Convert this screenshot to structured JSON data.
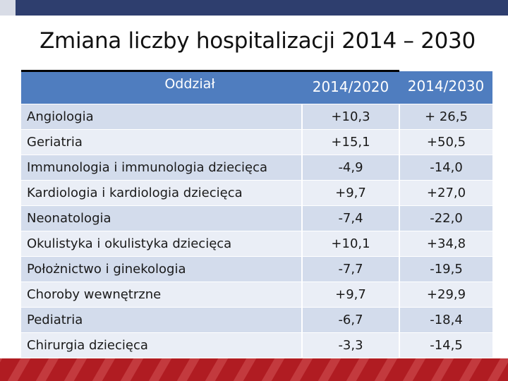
{
  "title": "Zmiana liczby hospitalizacji 2014 – 2030",
  "colors": {
    "header": "#4f7dbf",
    "row_dark": "#d3dcec",
    "row_light": "#eaeef6",
    "top_bar": "#2e3e6e",
    "bottom_bar": "#b01c22"
  },
  "table": {
    "headers": [
      "Oddział",
      "2014/2020",
      "2014/2030"
    ],
    "rows": [
      {
        "name": "Angiologia",
        "v2020": "+10,3",
        "v2030": "+ 26,5"
      },
      {
        "name": "Geriatria",
        "v2020": "+15,1",
        "v2030": "+50,5"
      },
      {
        "name": "Immunologia i immunologia dziecięca",
        "v2020": "-4,9",
        "v2030": "-14,0"
      },
      {
        "name": "Kardiologia i kardiologia dziecięca",
        "v2020": "+9,7",
        "v2030": "+27,0"
      },
      {
        "name": "Neonatologia",
        "v2020": "-7,4",
        "v2030": "-22,0"
      },
      {
        "name": "Okulistyka i okulistyka dziecięca",
        "v2020": "+10,1",
        "v2030": "+34,8"
      },
      {
        "name": "Położnictwo i ginekologia",
        "v2020": "-7,7",
        "v2030": "-19,5"
      },
      {
        "name": "Choroby wewnętrzne",
        "v2020": "+9,7",
        "v2030": "+29,9"
      },
      {
        "name": "Pediatria",
        "v2020": "-6,7",
        "v2030": "-18,4"
      },
      {
        "name": "Chirurgia dziecięca",
        "v2020": "-3,3",
        "v2030": "-14,5"
      }
    ]
  }
}
